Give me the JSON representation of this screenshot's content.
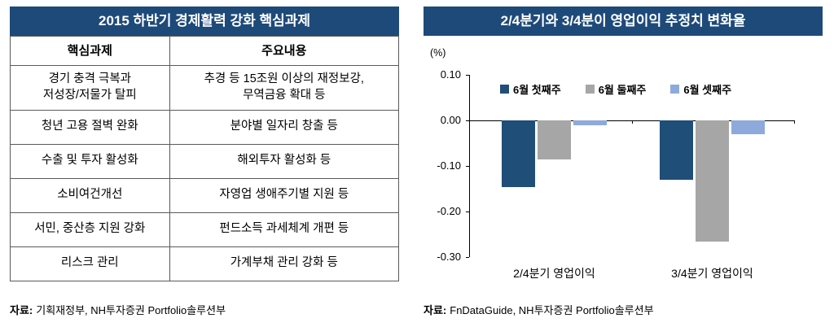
{
  "left_panel": {
    "title": "2015 하반기 경제활력 강화 핵심과제",
    "table": {
      "headers": [
        "핵심과제",
        "주요내용"
      ],
      "rows": [
        {
          "task": "경기 충격 극복과\n저성장/저물가 탈피",
          "content": "추경 등 15조원 이상의 재정보강,\n무역금융 확대 등"
        },
        {
          "task": "청년 고용 절벽 완화",
          "content": "분야별 일자리 창출 등"
        },
        {
          "task": "수출 및 투자 활성화",
          "content": "해외투자 활성화 등"
        },
        {
          "task": "소비여건개선",
          "content": "자영업 생애주기별 지원 등"
        },
        {
          "task": "서민, 중산층 지원 강화",
          "content": "펀드소득 과세체계 개편 등"
        },
        {
          "task": "리스크 관리",
          "content": "가계부채 관리 강화 등"
        }
      ]
    },
    "source_label": "자료:",
    "source_text": "기획재정부, NH투자증권  Portfolio솔루션부"
  },
  "right_panel": {
    "title": "2/4분기와 3/4분이 영업이익 추정치 변화율",
    "source_label": "자료:",
    "source_text": "FnDataGuide, NH투자증권  Portfolio솔루션부"
  },
  "chart_data": {
    "type": "bar",
    "title": "2/4분기와 3/4분이 영업이익 추정치 변화율",
    "unit_label": "(%)",
    "categories": [
      "2/4분기 영업이익",
      "3/4분기 영업이익"
    ],
    "series": [
      {
        "name": "6월 첫째주",
        "color": "#1F4E79",
        "values": [
          -0.145,
          -0.13
        ]
      },
      {
        "name": "6월 둘째주",
        "color": "#A6A6A6",
        "values": [
          -0.085,
          -0.265
        ]
      },
      {
        "name": "6월 셋째주",
        "color": "#8EA9DB",
        "values": [
          -0.01,
          -0.03
        ]
      }
    ],
    "ylim": [
      -0.3,
      0.1
    ],
    "yticks": [
      0.1,
      0.0,
      -0.1,
      -0.2,
      -0.3
    ],
    "legend_position": "top-inside",
    "grid": false,
    "axis_color": "#000000"
  }
}
